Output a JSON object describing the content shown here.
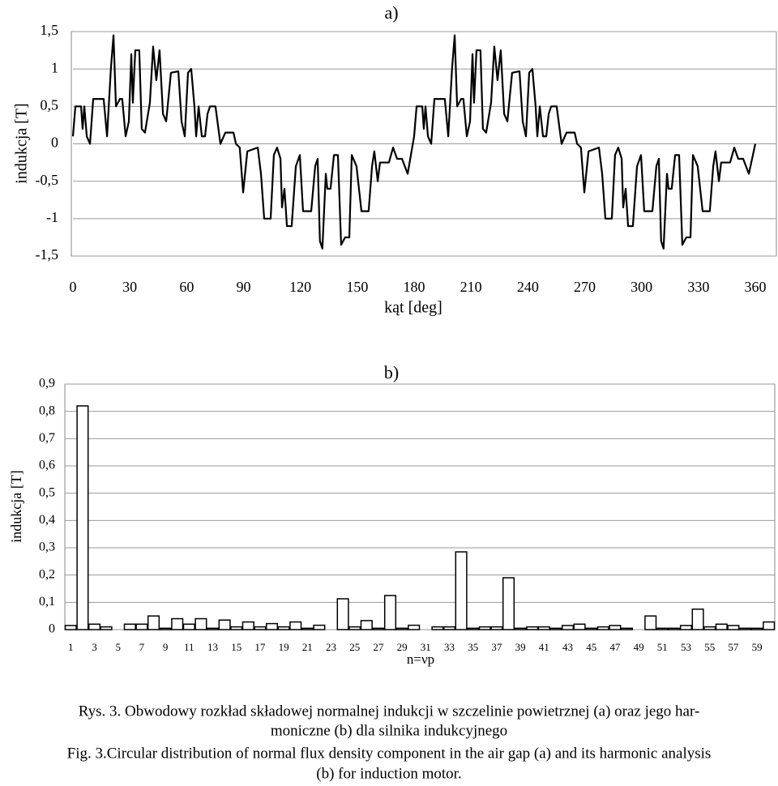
{
  "chart_data": [
    {
      "type": "line",
      "title": "a)",
      "ylabel": "indukcja [T]",
      "xlabel": "kąt [deg]",
      "color": "#000000",
      "grid": true,
      "xlim": [
        0,
        360
      ],
      "xticks": [
        0,
        30,
        60,
        90,
        120,
        150,
        180,
        210,
        240,
        270,
        300,
        330,
        360
      ],
      "ylim": [
        -1.5,
        1.5
      ],
      "yticks": [
        {
          "value": -1.5,
          "label": "-1,5"
        },
        -1,
        {
          "value": -0.5,
          "label": "-0,5"
        },
        0,
        {
          "value": 0.5,
          "label": "0,5"
        },
        1,
        {
          "value": 1.5,
          "label": "1,5"
        }
      ],
      "x": [
        0,
        1.3,
        4.3,
        5.1,
        6,
        7.3,
        9,
        10.7,
        16.2,
        18,
        20,
        21.4,
        22.7,
        24.8,
        26,
        27.8,
        29.5,
        30.8,
        31.6,
        32.9,
        35,
        36.3,
        38,
        40.6,
        42.3,
        44,
        45.7,
        47.5,
        49.2,
        51.7,
        55.6,
        57.3,
        59,
        60.7,
        62.4,
        64.1,
        65,
        66.3,
        68,
        69.7,
        71,
        72.3,
        75.2,
        77.8,
        80.4,
        84.7,
        86,
        88,
        89.8,
        92,
        97.5,
        99.2,
        100.9,
        104.3,
        106,
        107.7,
        109.5,
        110.3,
        111.6,
        112.9,
        115.4,
        117.6,
        119.7,
        121.4,
        125.7,
        127.8,
        129.1,
        130.3,
        131.6,
        133.4,
        134.2,
        135.9,
        137.7,
        139.8,
        141.5,
        143.6,
        145.8,
        147.1,
        149.6,
        152.2,
        156,
        157.8,
        159,
        160.8,
        162,
        166.7,
        168.9,
        171,
        173.6,
        176.6,
        180,
        181.3,
        184.3,
        185.1,
        186,
        187.3,
        189,
        190.7,
        196.2,
        198,
        200,
        201.4,
        202.7,
        204.8,
        206,
        207.8,
        209.5,
        210.8,
        211.6,
        212.9,
        215,
        216.3,
        218,
        220.6,
        222.3,
        224,
        225.7,
        227.5,
        229.2,
        231.7,
        235.6,
        237.3,
        239,
        240.7,
        242.4,
        244.1,
        245,
        246.3,
        248,
        249.7,
        251,
        252.3,
        255.2,
        257.8,
        260.4,
        264.7,
        266,
        268,
        269.8,
        272,
        277.5,
        279.2,
        280.9,
        284.3,
        286,
        287.7,
        289.5,
        290.3,
        291.6,
        292.9,
        295.4,
        297.6,
        299.7,
        301.4,
        305.7,
        307.8,
        309.1,
        310.3,
        311.6,
        313.4,
        314.2,
        315.9,
        317.7,
        319.8,
        321.5,
        323.6,
        325.8,
        327.1,
        329.6,
        332.2,
        336,
        337.8,
        339,
        340.8,
        342,
        346.7,
        348.9,
        351,
        353.6,
        356.6,
        360
      ],
      "values": [
        0.1,
        0.5,
        0.5,
        0.2,
        0.5,
        0.1,
        0,
        0.6,
        0.6,
        0.1,
        1,
        1.45,
        0.5,
        0.6,
        0.6,
        0.1,
        0.3,
        1.2,
        0.55,
        1.25,
        1.25,
        0.2,
        0.15,
        0.55,
        1.3,
        0.85,
        1.25,
        0.4,
        0.3,
        0.95,
        0.97,
        0.3,
        0.1,
        0.95,
        1,
        0.5,
        0.1,
        0.5,
        0.1,
        0.1,
        0.4,
        0.5,
        0.5,
        0,
        0.15,
        0.15,
        0,
        -0.05,
        -0.65,
        -0.1,
        -0.05,
        -0.4,
        -1,
        -1,
        -0.15,
        -0.05,
        -0.2,
        -0.85,
        -0.6,
        -1.1,
        -1.1,
        -0.3,
        -0.15,
        -0.9,
        -0.9,
        -0.3,
        -0.2,
        -1.3,
        -1.4,
        -0.4,
        -0.6,
        -0.6,
        -0.15,
        -0.15,
        -1.35,
        -1.25,
        -1.25,
        -0.15,
        -0.3,
        -0.9,
        -0.9,
        -0.3,
        -0.1,
        -0.5,
        -0.25,
        -0.25,
        -0.05,
        -0.2,
        -0.2,
        -0.4,
        0.1,
        0.5,
        0.5,
        0.2,
        0.5,
        0.1,
        0,
        0.6,
        0.6,
        0.1,
        1,
        1.45,
        0.5,
        0.6,
        0.6,
        0.1,
        0.3,
        1.2,
        0.55,
        1.25,
        1.25,
        0.2,
        0.15,
        0.55,
        1.3,
        0.85,
        1.25,
        0.4,
        0.3,
        0.95,
        0.97,
        0.3,
        0.1,
        0.95,
        1,
        0.5,
        0.1,
        0.5,
        0.1,
        0.1,
        0.4,
        0.5,
        0.5,
        0,
        0.15,
        0.15,
        0,
        -0.05,
        -0.65,
        -0.1,
        -0.05,
        -0.4,
        -1,
        -1,
        -0.15,
        -0.05,
        -0.2,
        -0.85,
        -0.6,
        -1.1,
        -1.1,
        -0.3,
        -0.15,
        -0.9,
        -0.9,
        -0.3,
        -0.2,
        -1.3,
        -1.4,
        -0.4,
        -0.6,
        -0.6,
        -0.15,
        -0.15,
        -1.35,
        -1.25,
        -1.25,
        -0.15,
        -0.3,
        -0.9,
        -0.9,
        -0.3,
        -0.1,
        -0.5,
        -0.25,
        -0.25,
        -0.05,
        -0.2,
        -0.2,
        -0.4,
        0
      ]
    },
    {
      "type": "bar",
      "title": "b)",
      "ylabel": "indukcja [T]",
      "xlabel": "n=νp",
      "color": "#ffffff",
      "grid": true,
      "ylim": [
        0,
        0.9
      ],
      "yticks": [
        0,
        {
          "value": 0.1,
          "label": "0,1"
        },
        {
          "value": 0.2,
          "label": "0,2"
        },
        {
          "value": 0.3,
          "label": "0,3"
        },
        {
          "value": 0.4,
          "label": "0,4"
        },
        {
          "value": 0.5,
          "label": "0,5"
        },
        {
          "value": 0.6,
          "label": "0,6"
        },
        {
          "value": 0.7,
          "label": "0,7"
        },
        {
          "value": 0.8,
          "label": "0,8"
        },
        {
          "value": 0.9,
          "label": "0,9"
        }
      ],
      "categories": [
        "1",
        null,
        "3",
        null,
        "5",
        null,
        "7",
        null,
        "9",
        null,
        "11",
        null,
        "13",
        null,
        "15",
        null,
        "17",
        null,
        "19",
        null,
        "21",
        null,
        "23",
        null,
        "25",
        null,
        "27",
        null,
        "29",
        null,
        "31",
        null,
        "33",
        null,
        "35",
        null,
        "37",
        null,
        "39",
        null,
        "41",
        null,
        "43",
        null,
        "45",
        null,
        "47",
        null,
        "49",
        null,
        "51",
        null,
        "53",
        null,
        "55",
        null,
        "57",
        null,
        "59",
        null
      ],
      "values": [
        0.015,
        0.82,
        0.02,
        0.01,
        0,
        0.02,
        0.02,
        0.05,
        0.005,
        0.04,
        0.02,
        0.04,
        0.005,
        0.035,
        0.01,
        0.028,
        0.01,
        0.022,
        0.01,
        0.028,
        0.005,
        0.016,
        0,
        0.113,
        0.01,
        0.033,
        0.005,
        0.125,
        0.005,
        0.016,
        0,
        0.01,
        0.01,
        0.285,
        0.005,
        0.01,
        0.01,
        0.19,
        0.005,
        0.01,
        0.01,
        0.005,
        0.015,
        0.02,
        0.005,
        0.01,
        0.015,
        0.005,
        0,
        0.05,
        0.005,
        0.005,
        0.015,
        0.075,
        0.01,
        0.02,
        0.015,
        0.005,
        0.005,
        0.028
      ]
    }
  ],
  "caption": {
    "lines": [
      "Rys. 3. Obwodowy rozkład składowej normalnej indukcji w szczelinie powietrznej (a) oraz jego har-",
      "moniczne (b) dla silnika indukcyjnego",
      "Fig. 3.Circular distribution of normal flux density component in the air gap (a) and its harmonic analysis",
      "(b) for induction motor."
    ]
  }
}
